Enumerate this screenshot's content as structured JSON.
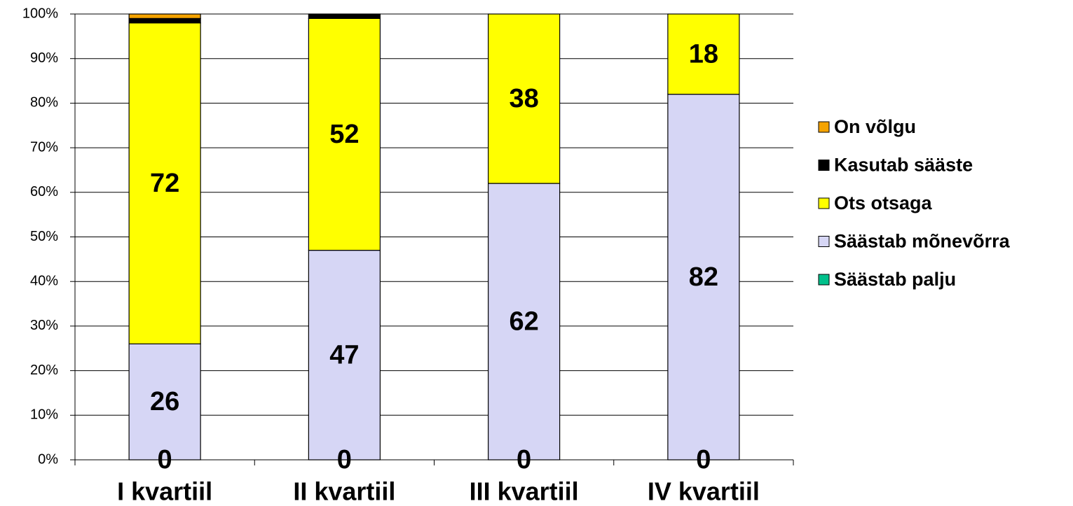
{
  "chart_data": {
    "type": "stacked_bar",
    "categories": [
      "I kvartiil",
      "II kvartiil",
      "III kvartiil",
      "IV kvartiil"
    ],
    "series": [
      {
        "name": "Säästab palju",
        "color": "#00c08b",
        "values": [
          0,
          0,
          0,
          0
        ],
        "show_labels": true
      },
      {
        "name": "Säästab mõnevõrra",
        "color": "#d6d6f5",
        "values": [
          26,
          47,
          62,
          82
        ],
        "show_labels": true
      },
      {
        "name": "Ots otsaga",
        "color": "#ffff00",
        "values": [
          72,
          52,
          38,
          18
        ],
        "show_labels": true
      },
      {
        "name": "Kasutab sääste",
        "color": "#000000",
        "values": [
          1,
          1,
          0,
          0
        ],
        "show_labels": false
      },
      {
        "name": "On võlgu",
        "color": "#f5a300",
        "values": [
          1,
          0,
          0,
          0
        ],
        "show_labels": false
      }
    ],
    "ylim": [
      0,
      100
    ],
    "yticks": [
      {
        "value": 0,
        "label": "0%"
      },
      {
        "value": 10,
        "label": "10%"
      },
      {
        "value": 20,
        "label": "20%"
      },
      {
        "value": 30,
        "label": "30%"
      },
      {
        "value": 40,
        "label": "40%"
      },
      {
        "value": 50,
        "label": "50%"
      },
      {
        "value": 60,
        "label": "60%"
      },
      {
        "value": 70,
        "label": "70%"
      },
      {
        "value": 80,
        "label": "80%"
      },
      {
        "value": 90,
        "label": "90%"
      },
      {
        "value": 100,
        "label": "100%"
      }
    ],
    "grid": true,
    "legend": "right"
  }
}
